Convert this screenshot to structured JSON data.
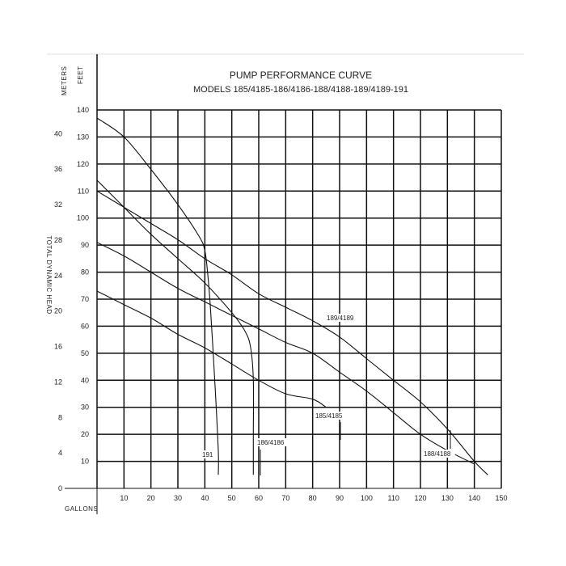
{
  "chart_data": {
    "type": "line",
    "title": "PUMP PERFORMANCE CURVE",
    "subtitle": "MODELS 185/4185-186/4186-188/4188-189/4189-191",
    "xlabel": "GALLONS",
    "ylabel_feet": "FEET",
    "ylabel_meters": "METERS",
    "ylabel_side": "TOTAL DYNAMIC HEAD",
    "xlim": [
      0,
      150
    ],
    "ylim_feet": [
      0,
      140
    ],
    "x_ticks": [
      10,
      20,
      30,
      40,
      50,
      60,
      70,
      80,
      90,
      100,
      110,
      120,
      130,
      140,
      150
    ],
    "feet_ticks": [
      10,
      20,
      30,
      40,
      50,
      60,
      70,
      80,
      90,
      100,
      110,
      120,
      130,
      140
    ],
    "meter_ticks": [
      0,
      4,
      8,
      12,
      16,
      20,
      24,
      28,
      32,
      36,
      40
    ],
    "grid": true,
    "series": [
      {
        "name": "191",
        "x": [
          0,
          10,
          20,
          30,
          38,
          40,
          41,
          42,
          43,
          44,
          45,
          45
        ],
        "y": [
          137,
          130,
          118,
          105,
          93,
          88,
          80,
          68,
          52,
          34,
          14,
          5
        ]
      },
      {
        "name": "186/4186",
        "x": [
          0,
          10,
          20,
          30,
          40,
          50,
          55,
          57,
          58,
          58,
          58
        ],
        "y": [
          114,
          104,
          94,
          85,
          76,
          65,
          58,
          52,
          40,
          20,
          5
        ]
      },
      {
        "name": "189/4189",
        "x": [
          0,
          10,
          20,
          30,
          40,
          50,
          60,
          70,
          80,
          90,
          100,
          110,
          120,
          130,
          140,
          145
        ],
        "y": [
          110,
          104,
          98,
          92,
          85,
          79,
          72,
          67,
          62,
          56,
          48,
          40,
          32,
          22,
          10,
          5
        ]
      },
      {
        "name": "188/4188",
        "x": [
          0,
          10,
          20,
          30,
          40,
          50,
          60,
          70,
          80,
          90,
          100,
          110,
          120,
          130,
          140
        ],
        "y": [
          91,
          86,
          80,
          74,
          69,
          64,
          59,
          54,
          50,
          43,
          36,
          28,
          20,
          14,
          9
        ]
      },
      {
        "name": "185/4185",
        "x": [
          0,
          10,
          20,
          30,
          40,
          50,
          60,
          70,
          80,
          85
        ],
        "y": [
          73,
          68,
          63,
          57,
          52,
          46,
          40,
          35,
          33,
          30
        ]
      }
    ]
  }
}
